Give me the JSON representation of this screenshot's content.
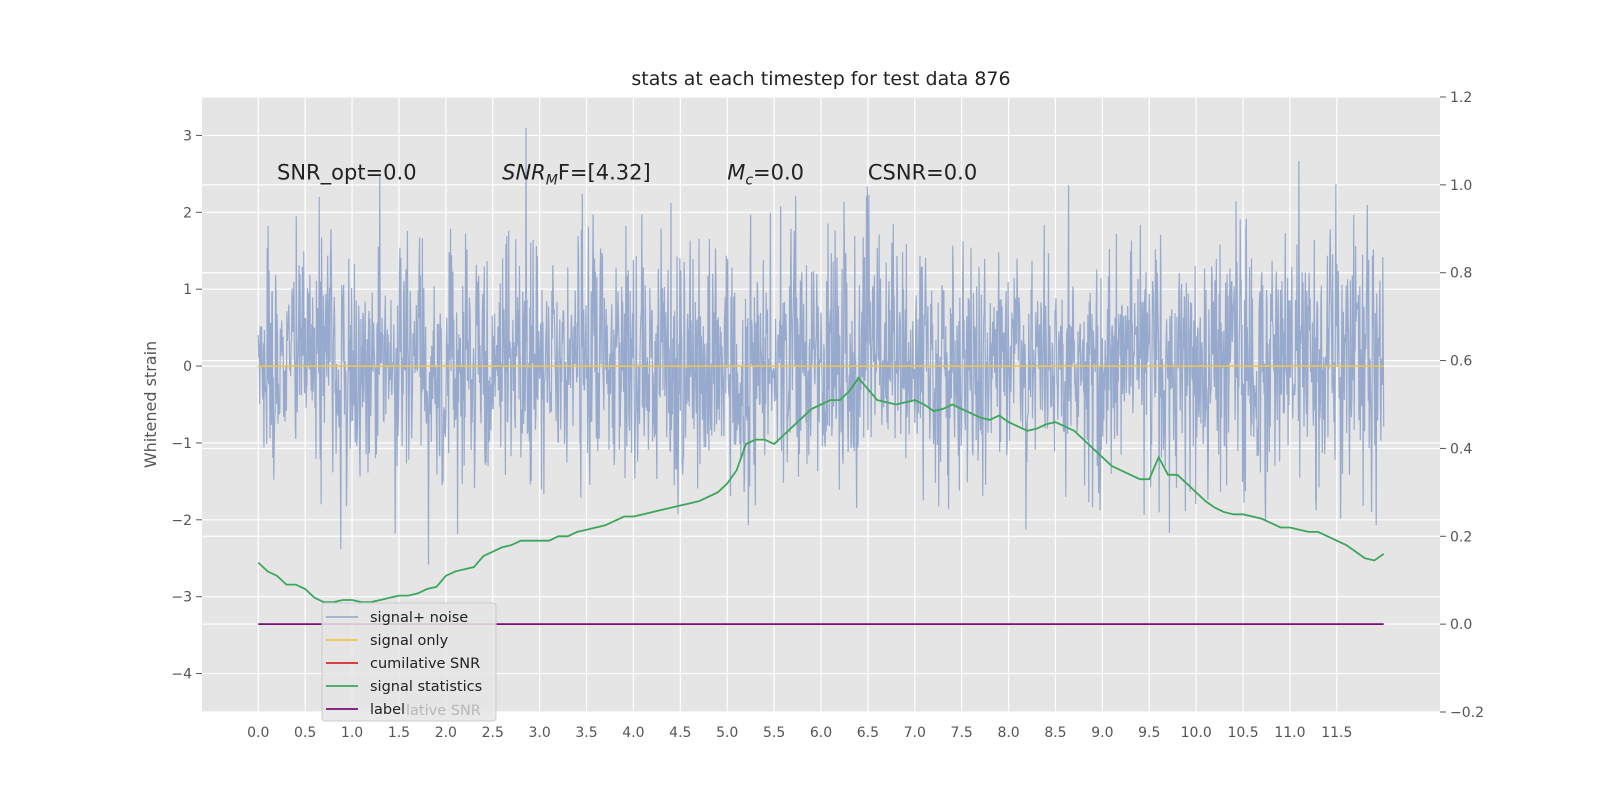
{
  "chart_data": {
    "type": "line",
    "title": "stats at each timestep for test data 876",
    "xlabel": "",
    "ylabel": "Whitened strain",
    "xlim": [
      -0.6,
      12.6
    ],
    "ylim": [
      -4.5,
      3.5
    ],
    "y2lim": [
      -0.2,
      1.2
    ],
    "grid": true,
    "x_ticks": [
      0.0,
      0.5,
      1.0,
      1.5,
      2.0,
      2.5,
      3.0,
      3.5,
      4.0,
      4.5,
      5.0,
      5.5,
      6.0,
      6.5,
      7.0,
      7.5,
      8.0,
      8.5,
      9.0,
      9.5,
      10.0,
      10.5,
      11.0,
      11.5
    ],
    "x_tick_labels": [
      "0.0",
      "0.5",
      "1.0",
      "1.5",
      "2.0",
      "2.5",
      "3.0",
      "3.5",
      "4.0",
      "4.5",
      "5.0",
      "5.5",
      "6.0",
      "6.5",
      "7.0",
      "7.5",
      "8.0",
      "8.5",
      "9.0",
      "9.5",
      "10.0",
      "10.5",
      "11.0",
      "11.5"
    ],
    "y_ticks": [
      3,
      2,
      1,
      0,
      -1,
      -2,
      -3,
      -4
    ],
    "y_tick_labels": [
      "3",
      "2",
      "1",
      "0",
      "−1",
      "−2",
      "−3",
      "−4"
    ],
    "y2_ticks": [
      1.2,
      1.0,
      0.8,
      0.6,
      0.4,
      0.2,
      0.0,
      -0.2
    ],
    "y2_tick_labels": [
      "1.2",
      "1.0",
      "0.8",
      "0.6",
      "0.4",
      "0.2",
      "0.0",
      "−0.2"
    ],
    "annotations": [
      {
        "prefix": "SNR_opt=0.0",
        "italic": "",
        "sub": "",
        "suffix": "",
        "x": 0.2
      },
      {
        "prefix": "",
        "italic": "SNR",
        "sub": "M",
        "suffix": "F=[4.32]",
        "x": 2.6
      },
      {
        "prefix": "",
        "italic": "M",
        "sub": "c",
        "suffix": "=0.0",
        "x": 5.0
      },
      {
        "prefix": "CSNR=0.0",
        "italic": "",
        "sub": "",
        "suffix": "",
        "x": 6.5
      }
    ],
    "annotation_y": 2.4,
    "legend_location": "lower-left",
    "legend_entries": [
      "signal+ noise",
      "signal only",
      "cumilative SNR",
      "signal statistics",
      "label"
    ],
    "legend_overlap_text": "lative SNR",
    "series": [
      {
        "name": "signal+ noise",
        "axis": "left",
        "color": "#92a6cb",
        "x_range": [
          0.0,
          12.0
        ],
        "approx_envelope": [
          -2.0,
          2.3
        ]
      },
      {
        "name": "signal only",
        "axis": "left",
        "color": "#f5c54a",
        "values_constant": 0.0,
        "x_range": [
          0.0,
          12.0
        ]
      },
      {
        "name": "cumilative SNR",
        "axis": "right",
        "color": "#d62728",
        "x": [],
        "y": []
      },
      {
        "name": "signal statistics",
        "axis": "right",
        "color": "#3ca65a",
        "x": [
          0.0,
          0.1,
          0.2,
          0.3,
          0.4,
          0.5,
          0.6,
          0.7,
          0.8,
          0.9,
          1.0,
          1.1,
          1.2,
          1.3,
          1.4,
          1.5,
          1.6,
          1.7,
          1.8,
          1.9,
          2.0,
          2.1,
          2.2,
          2.3,
          2.4,
          2.5,
          2.6,
          2.7,
          2.8,
          2.9,
          3.0,
          3.1,
          3.2,
          3.3,
          3.4,
          3.5,
          3.6,
          3.7,
          3.8,
          3.9,
          4.0,
          4.1,
          4.2,
          4.3,
          4.4,
          4.5,
          4.6,
          4.7,
          4.8,
          4.9,
          5.0,
          5.1,
          5.2,
          5.3,
          5.4,
          5.5,
          5.6,
          5.7,
          5.8,
          5.9,
          6.0,
          6.1,
          6.2,
          6.3,
          6.4,
          6.5,
          6.6,
          6.7,
          6.8,
          6.9,
          7.0,
          7.1,
          7.2,
          7.3,
          7.4,
          7.5,
          7.6,
          7.7,
          7.8,
          7.9,
          8.0,
          8.1,
          8.2,
          8.3,
          8.4,
          8.5,
          8.6,
          8.7,
          8.8,
          8.9,
          9.0,
          9.1,
          9.2,
          9.3,
          9.4,
          9.5,
          9.6,
          9.7,
          9.8,
          9.9,
          10.0,
          10.1,
          10.2,
          10.3,
          10.4,
          10.5,
          10.6,
          10.7,
          10.8,
          10.9,
          11.0,
          11.1,
          11.2,
          11.3,
          11.4,
          11.5,
          11.6,
          11.7,
          11.8,
          11.9,
          12.0
        ],
        "y": [
          0.14,
          0.12,
          0.11,
          0.09,
          0.09,
          0.08,
          0.06,
          0.05,
          0.05,
          0.055,
          0.055,
          0.05,
          0.05,
          0.055,
          0.06,
          0.065,
          0.065,
          0.07,
          0.08,
          0.085,
          0.11,
          0.12,
          0.125,
          0.13,
          0.155,
          0.165,
          0.175,
          0.18,
          0.19,
          0.19,
          0.19,
          0.19,
          0.2,
          0.2,
          0.21,
          0.215,
          0.22,
          0.225,
          0.235,
          0.245,
          0.245,
          0.25,
          0.255,
          0.26,
          0.265,
          0.27,
          0.275,
          0.28,
          0.29,
          0.3,
          0.32,
          0.35,
          0.41,
          0.42,
          0.42,
          0.41,
          0.43,
          0.45,
          0.47,
          0.49,
          0.5,
          0.51,
          0.51,
          0.53,
          0.56,
          0.535,
          0.51,
          0.505,
          0.5,
          0.505,
          0.51,
          0.5,
          0.485,
          0.49,
          0.5,
          0.49,
          0.48,
          0.47,
          0.465,
          0.475,
          0.46,
          0.45,
          0.44,
          0.445,
          0.455,
          0.46,
          0.45,
          0.44,
          0.42,
          0.4,
          0.38,
          0.36,
          0.35,
          0.34,
          0.33,
          0.33,
          0.38,
          0.34,
          0.34,
          0.32,
          0.3,
          0.28,
          0.265,
          0.255,
          0.25,
          0.25,
          0.245,
          0.24,
          0.23,
          0.22,
          0.22,
          0.215,
          0.21,
          0.21,
          0.2,
          0.19,
          0.18,
          0.165,
          0.15,
          0.145,
          0.16
        ]
      },
      {
        "name": "label",
        "axis": "right",
        "color": "#7a0f7a",
        "x": [
          0.0,
          12.0
        ],
        "y": [
          0.0,
          0.0
        ]
      }
    ]
  }
}
